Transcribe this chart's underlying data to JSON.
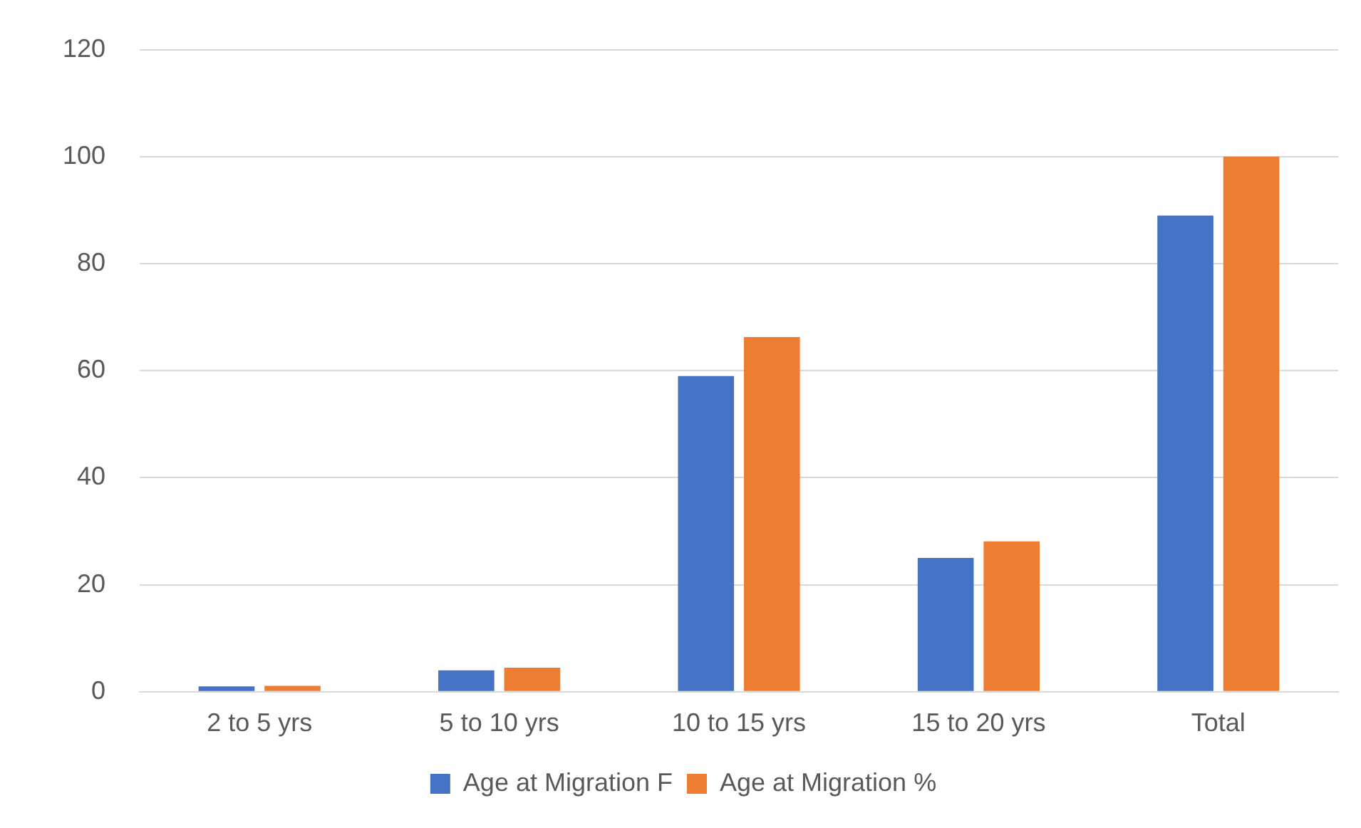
{
  "chart_data": {
    "type": "bar",
    "categories": [
      "2 to 5 yrs",
      "5 to 10 yrs",
      "10 to 15 yrs",
      "15 to 20 yrs",
      "Total"
    ],
    "series": [
      {
        "name": "Age at Migration F",
        "color": "#4472c4",
        "values": [
          1,
          4,
          59,
          25,
          89
        ]
      },
      {
        "name": "Age at Migration %",
        "color": "#ed7d31",
        "values": [
          1.1,
          4.5,
          66.3,
          28.1,
          100
        ]
      }
    ],
    "ylim": [
      0,
      120
    ],
    "yticks": [
      0,
      20,
      40,
      60,
      80,
      100,
      120
    ],
    "grid": "y",
    "legend": "bottom"
  }
}
